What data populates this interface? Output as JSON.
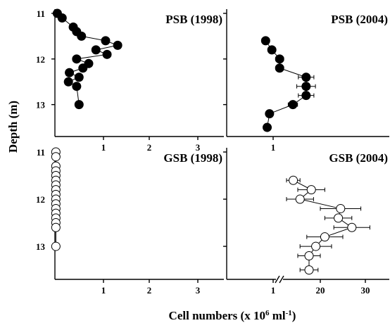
{
  "figure": {
    "xlabel": "Cell numbers (x 10",
    "xlabel_exp": "6",
    "xlabel_tail": " ml",
    "xlabel_unit_exp": "-1",
    "xlabel_close": ")",
    "ylabel": "Depth (m)"
  },
  "chart_data": [
    {
      "type": "scatter",
      "title": "PSB (1998)",
      "marker": "filled-circle",
      "connected": true,
      "xlim": [
        0,
        3.5
      ],
      "x_ticks": [
        "1",
        "2",
        "3"
      ],
      "ylim": [
        11,
        13.7
      ],
      "y_ticks": [
        "11",
        "12",
        "13"
      ],
      "points": [
        {
          "x": 0.05,
          "y": 11.0
        },
        {
          "x": 0.15,
          "y": 11.1
        },
        {
          "x": 0.38,
          "y": 11.3
        },
        {
          "x": 0.45,
          "y": 11.4
        },
        {
          "x": 0.55,
          "y": 11.5
        },
        {
          "x": 1.05,
          "y": 11.6
        },
        {
          "x": 1.3,
          "y": 11.7
        },
        {
          "x": 0.85,
          "y": 11.8
        },
        {
          "x": 1.08,
          "y": 11.9
        },
        {
          "x": 0.45,
          "y": 12.0
        },
        {
          "x": 0.7,
          "y": 12.1
        },
        {
          "x": 0.58,
          "y": 12.2
        },
        {
          "x": 0.3,
          "y": 12.3
        },
        {
          "x": 0.5,
          "y": 12.4
        },
        {
          "x": 0.28,
          "y": 12.5
        },
        {
          "x": 0.45,
          "y": 12.6
        },
        {
          "x": 0.5,
          "y": 13.0
        }
      ]
    },
    {
      "type": "scatter",
      "title": "PSB (2004)",
      "marker": "filled-circle",
      "connected": true,
      "error_bars": true,
      "xlim": [
        0,
        1.6
      ],
      "x_ticks": [
        "1"
      ],
      "ylim": [
        11,
        13.7
      ],
      "points": [
        {
          "x": 0.5,
          "y": 11.6,
          "err": 0.0
        },
        {
          "x": 0.58,
          "y": 11.8,
          "err": 0.0
        },
        {
          "x": 0.68,
          "y": 12.0,
          "err": 0.05
        },
        {
          "x": 0.68,
          "y": 12.2,
          "err": 0.05
        },
        {
          "x": 1.02,
          "y": 12.4,
          "err": 0.1
        },
        {
          "x": 1.02,
          "y": 12.6,
          "err": 0.12
        },
        {
          "x": 1.02,
          "y": 12.8,
          "err": 0.1
        },
        {
          "x": 0.85,
          "y": 13.0,
          "err": 0.06
        },
        {
          "x": 0.55,
          "y": 13.2,
          "err": 0.0
        },
        {
          "x": 0.52,
          "y": 13.5,
          "err": 0.0
        }
      ]
    },
    {
      "type": "scatter",
      "title": "GSB (1998)",
      "marker": "open-circle",
      "connected": true,
      "xlim": [
        0,
        3.5
      ],
      "x_ticks": [
        "1",
        "2",
        "3"
      ],
      "ylim": [
        11,
        13.7
      ],
      "y_ticks": [
        "11",
        "12",
        "13"
      ],
      "points": [
        {
          "x": 0.02,
          "y": 11.0
        },
        {
          "x": 0.02,
          "y": 11.1
        },
        {
          "x": 0.02,
          "y": 11.3
        },
        {
          "x": 0.02,
          "y": 11.4
        },
        {
          "x": 0.02,
          "y": 11.5
        },
        {
          "x": 0.02,
          "y": 11.6
        },
        {
          "x": 0.02,
          "y": 11.7
        },
        {
          "x": 0.02,
          "y": 11.8
        },
        {
          "x": 0.02,
          "y": 11.9
        },
        {
          "x": 0.02,
          "y": 12.0
        },
        {
          "x": 0.02,
          "y": 12.1
        },
        {
          "x": 0.02,
          "y": 12.2
        },
        {
          "x": 0.02,
          "y": 12.3
        },
        {
          "x": 0.02,
          "y": 12.4
        },
        {
          "x": 0.02,
          "y": 12.5
        },
        {
          "x": 0.02,
          "y": 12.6
        },
        {
          "x": 0.02,
          "y": 13.0
        }
      ]
    },
    {
      "type": "scatter",
      "title": "GSB (2004)",
      "marker": "open-circle",
      "connected": true,
      "error_bars": true,
      "axis_break": true,
      "x_ticks": [
        "1",
        "20",
        "30"
      ],
      "ylim": [
        11,
        13.7
      ],
      "points": [
        {
          "x": 14,
          "y": 11.6,
          "err": 1.5
        },
        {
          "x": 18,
          "y": 11.8,
          "err": 3
        },
        {
          "x": 15.5,
          "y": 12.0,
          "err": 3
        },
        {
          "x": 24.5,
          "y": 12.2,
          "err": 4.5
        },
        {
          "x": 24,
          "y": 12.4,
          "err": 3
        },
        {
          "x": 27,
          "y": 12.6,
          "err": 4
        },
        {
          "x": 21,
          "y": 12.8,
          "err": 4
        },
        {
          "x": 19,
          "y": 13.0,
          "err": 3.5
        },
        {
          "x": 17.5,
          "y": 13.2,
          "err": 2.5
        },
        {
          "x": 17.5,
          "y": 13.5,
          "err": 2
        }
      ]
    }
  ]
}
